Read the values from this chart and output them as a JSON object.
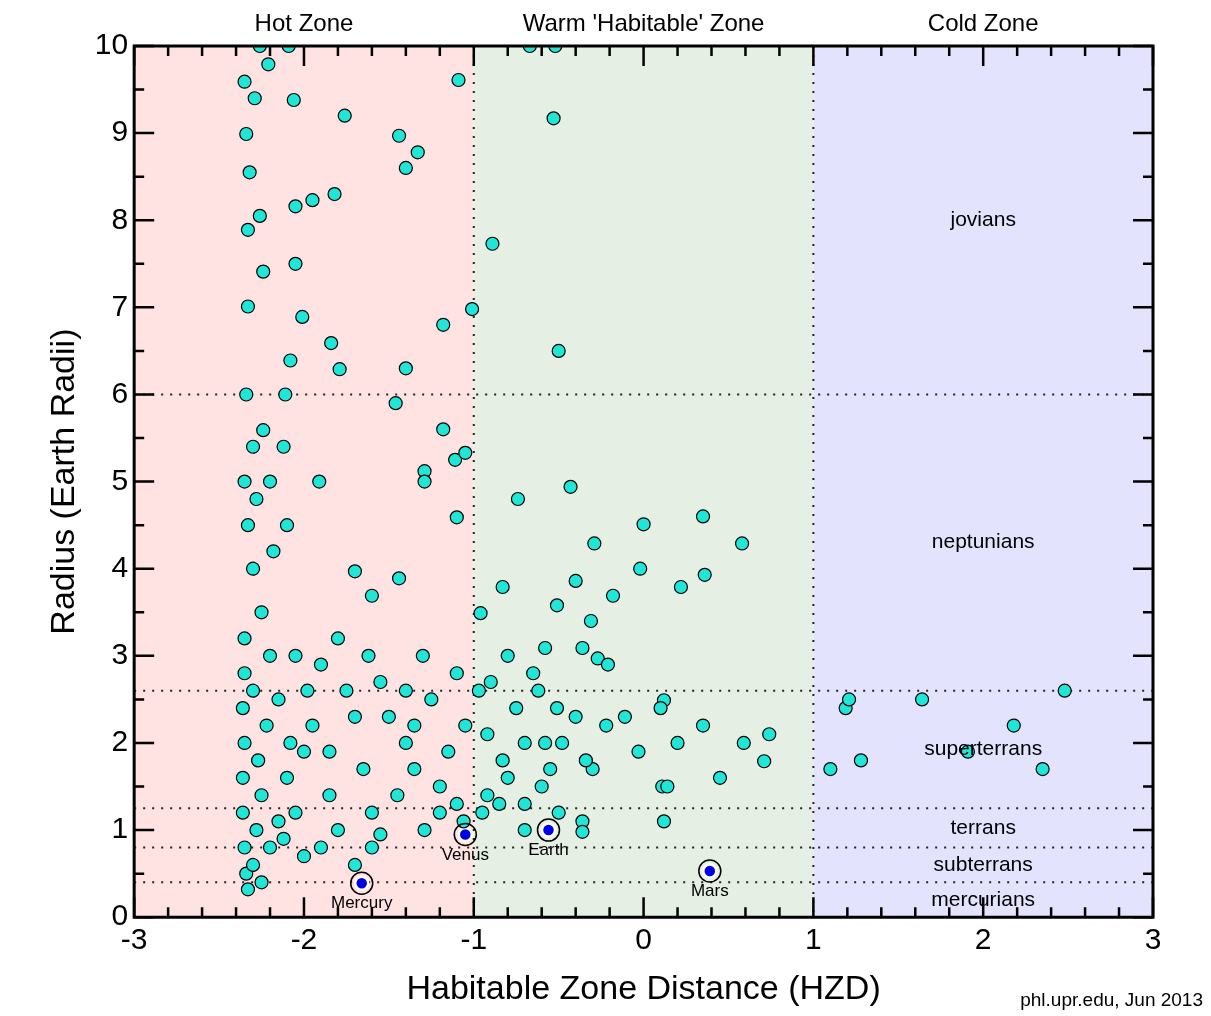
{
  "chart_data": {
    "type": "scatter",
    "xlabel": "Habitable Zone Distance (HZD)",
    "ylabel": "Radius (Earth Radii)",
    "xlim": [
      -3,
      3
    ],
    "ylim": [
      0,
      10
    ],
    "xticks": [
      -3,
      {
        "value": -2.8,
        "label": null
      },
      {
        "value": -2.6,
        "label": null
      },
      {
        "value": -2.4,
        "label": null
      },
      {
        "value": -2.2,
        "label": null
      },
      -2,
      {
        "value": -1.8,
        "label": null
      },
      {
        "value": -1.6,
        "label": null
      },
      {
        "value": -1.4,
        "label": null
      },
      {
        "value": -1.2,
        "label": null
      },
      -1,
      {
        "value": -0.8,
        "label": null
      },
      {
        "value": -0.6,
        "label": null
      },
      {
        "value": -0.4,
        "label": null
      },
      {
        "value": -0.2,
        "label": null
      },
      0,
      {
        "value": 0.2,
        "label": null
      },
      {
        "value": 0.4,
        "label": null
      },
      {
        "value": 0.6,
        "label": null
      },
      {
        "value": 0.8,
        "label": null
      },
      1,
      {
        "value": 1.2,
        "label": null
      },
      {
        "value": 1.4,
        "label": null
      },
      {
        "value": 1.6,
        "label": null
      },
      {
        "value": 1.8,
        "label": null
      },
      2,
      {
        "value": 2.2,
        "label": null
      },
      {
        "value": 2.4,
        "label": null
      },
      {
        "value": 2.6,
        "label": null
      },
      {
        "value": 2.8,
        "label": null
      },
      3
    ],
    "yticks": [
      0,
      {
        "value": 0.5,
        "label": null
      },
      1,
      {
        "value": 1.5,
        "label": null
      },
      2,
      {
        "value": 2.5,
        "label": null
      },
      3,
      {
        "value": 3.5,
        "label": null
      },
      4,
      {
        "value": 4.5,
        "label": null
      },
      5,
      {
        "value": 5.5,
        "label": null
      },
      6,
      {
        "value": 6.5,
        "label": null
      },
      7,
      {
        "value": 7.5,
        "label": null
      },
      8,
      {
        "value": 8.5,
        "label": null
      },
      9,
      {
        "value": 9.5,
        "label": null
      },
      10
    ],
    "grid": false,
    "legend": false,
    "marker": "circle",
    "bands": [
      {
        "axis": "x",
        "from": -3,
        "to": -1,
        "label": "Hot Zone",
        "color": "#ffe3e3"
      },
      {
        "axis": "x",
        "from": -1,
        "to": 1,
        "label": "Warm 'Habitable' Zone",
        "color": "#e5efe3"
      },
      {
        "axis": "x",
        "from": 1,
        "to": 3,
        "label": "Cold Zone",
        "color": "#e3e3fd"
      }
    ],
    "ref_lines": [
      {
        "axis": "x",
        "value": -1,
        "line_style": "dotted"
      },
      {
        "axis": "x",
        "value": 1,
        "line_style": "dotted"
      },
      {
        "axis": "y",
        "value": 6,
        "line_style": "dotted"
      },
      {
        "axis": "y",
        "value": 2.6,
        "line_style": "dotted"
      },
      {
        "axis": "y",
        "value": 1.25,
        "line_style": "dotted"
      },
      {
        "axis": "y",
        "value": 0.8,
        "line_style": "dotted"
      },
      {
        "axis": "y",
        "value": 0.4,
        "line_style": "dotted"
      }
    ],
    "series": [
      {
        "color": "#20e6d8",
        "x": [
          -2.26,
          -2.09,
          -0.67,
          -0.52,
          -2.21,
          -2.35,
          -2.29,
          -2.06,
          -1.09,
          -1.76,
          -0.53,
          -2.34,
          -1.44,
          -1.33,
          -1.4,
          -2.32,
          -1.82,
          -1.95,
          -2.05,
          -2.26,
          -2.33,
          -0.89,
          -2.05,
          -2.24,
          -2.33,
          -1.01,
          -2.01,
          -1.18,
          -1.84,
          -0.5,
          -2.08,
          -1.79,
          -1.4,
          -2.34,
          -2.11,
          -1.46,
          -1.18,
          -2.24,
          -1.29,
          -1.29,
          -1.11,
          -1.05,
          -0.43,
          -0.74,
          -1.91,
          -1.1,
          0.0,
          0.35,
          0.58,
          -0.29,
          -0.02,
          -0.4,
          0.36,
          0.22,
          -0.83,
          -0.18,
          -0.51,
          -0.96,
          -0.31,
          -1.6,
          -1.7,
          -1.44,
          -0.58,
          -0.36,
          -0.27,
          -0.21,
          0.12,
          0.1,
          0.35,
          0.59,
          0.74,
          0.71,
          0.45,
          0.2,
          0.11,
          0.14,
          0.12,
          -0.03,
          -0.11,
          -0.3,
          -0.34,
          -0.36,
          -0.36,
          -0.51,
          -0.48,
          -0.6,
          -0.7,
          -0.8,
          -0.83,
          -0.92,
          -0.97,
          -0.92,
          -1.06,
          -1.1,
          -1.29,
          -1.2,
          -1.35,
          -1.4,
          -1.6,
          -1.7,
          -1.5,
          -1.55,
          -1.62,
          -1.75,
          -1.8,
          -1.9,
          -1.95,
          -2.0,
          -1.85,
          -1.8,
          -1.9,
          -2.05,
          -2.0,
          -2.15,
          -2.2,
          -2.25,
          -2.3,
          -2.18,
          -2.1,
          -2.33,
          -2.28,
          -2.35,
          -2.2,
          -2.12,
          -2.3,
          -2.35,
          -2.35,
          -2.36,
          -2.35,
          -2.36,
          -2.36,
          -2.35,
          -2.34,
          -2.33,
          -2.3,
          -2.28,
          -2.25,
          -2.27,
          -2.22,
          -2.3,
          -2.2,
          -2.15,
          -2.1,
          -2.08,
          -2.12,
          -1.98,
          -2.05,
          -1.7,
          -1.65,
          -1.45,
          -1.4,
          -1.3,
          -1.35,
          -1.25,
          -1.15,
          -1.1,
          -1.05,
          -0.95,
          -0.9,
          -0.8,
          -0.75,
          -0.7,
          -0.65,
          -0.62,
          -0.58,
          -0.55,
          -0.4,
          -0.22,
          -0.5,
          -0.7,
          -0.85,
          1.1,
          1.19,
          1.21,
          1.28,
          1.64,
          1.91,
          2.18,
          2.35,
          2.48,
          -1.2,
          -1.6,
          -1.85,
          -1.55,
          -2.25
        ],
        "values": [
          10.0,
          10.0,
          10.0,
          10.0,
          9.79,
          9.59,
          9.4,
          9.38,
          9.61,
          9.2,
          9.17,
          8.99,
          8.97,
          8.78,
          8.6,
          8.55,
          8.3,
          8.23,
          8.16,
          8.05,
          7.89,
          7.73,
          7.5,
          7.41,
          7.01,
          6.98,
          6.89,
          6.8,
          6.59,
          6.5,
          6.39,
          6.29,
          6.3,
          6.0,
          6.0,
          5.9,
          5.6,
          5.59,
          5.12,
          5.0,
          5.25,
          5.33,
          4.94,
          4.8,
          5.0,
          4.59,
          4.51,
          4.6,
          4.29,
          4.29,
          4.0,
          3.86,
          3.93,
          3.79,
          3.79,
          3.69,
          3.58,
          3.49,
          3.4,
          3.69,
          3.97,
          3.89,
          3.09,
          3.09,
          2.97,
          2.9,
          2.49,
          2.4,
          2.2,
          2.0,
          2.1,
          1.79,
          1.6,
          2.0,
          1.5,
          1.5,
          1.1,
          1.9,
          2.3,
          1.7,
          1.8,
          1.1,
          0.98,
          2.4,
          2.0,
          1.5,
          1.3,
          1.6,
          1.8,
          2.1,
          2.6,
          1.4,
          1.1,
          1.3,
          1.0,
          1.5,
          1.7,
          2.0,
          0.8,
          0.6,
          2.3,
          2.7,
          3.0,
          2.6,
          3.2,
          2.9,
          2.2,
          1.9,
          1.4,
          1.0,
          0.8,
          1.2,
          0.7,
          2.5,
          3.0,
          3.5,
          4.0,
          4.2,
          4.5,
          4.5,
          4.8,
          5.0,
          5.0,
          5.4,
          5.4,
          3.2,
          2.8,
          2.4,
          2.0,
          1.6,
          1.2,
          0.8,
          0.5,
          0.32,
          0.6,
          1.0,
          1.4,
          1.8,
          2.2,
          2.6,
          0.8,
          1.1,
          1.6,
          2.0,
          0.9,
          2.6,
          3.0,
          2.3,
          1.7,
          1.4,
          2.6,
          3.0,
          2.2,
          2.5,
          1.9,
          2.8,
          2.2,
          1.2,
          2.7,
          3.0,
          2.4,
          2.0,
          2.8,
          2.6,
          2.0,
          1.7,
          2.3,
          2.2,
          1.2,
          1.0,
          1.3,
          1.7,
          2.4,
          2.5,
          1.8,
          2.5,
          1.9,
          2.2,
          1.7,
          2.6,
          1.2,
          1.2,
          1.9,
          0.95,
          0.4
        ]
      },
      {
        "color": "#0000e6",
        "x": [
          -1.66,
          -1.05,
          -0.56,
          0.39
        ],
        "values": [
          0.39,
          0.95,
          1.0,
          0.53
        ]
      }
    ],
    "annotations": [
      {
        "text": "Mercury",
        "x": -1.66,
        "y": 0.39
      },
      {
        "text": "Venus",
        "x": -1.05,
        "y": 0.95
      },
      {
        "text": "Earth",
        "x": -0.56,
        "y": 1.0
      },
      {
        "text": "Mars",
        "x": 0.39,
        "y": 0.53
      },
      "jovians",
      "neptunians",
      "superterrans",
      "terrans",
      "subterrans",
      "mercurians",
      "phl.upr.edu, Jun 2013"
    ]
  }
}
